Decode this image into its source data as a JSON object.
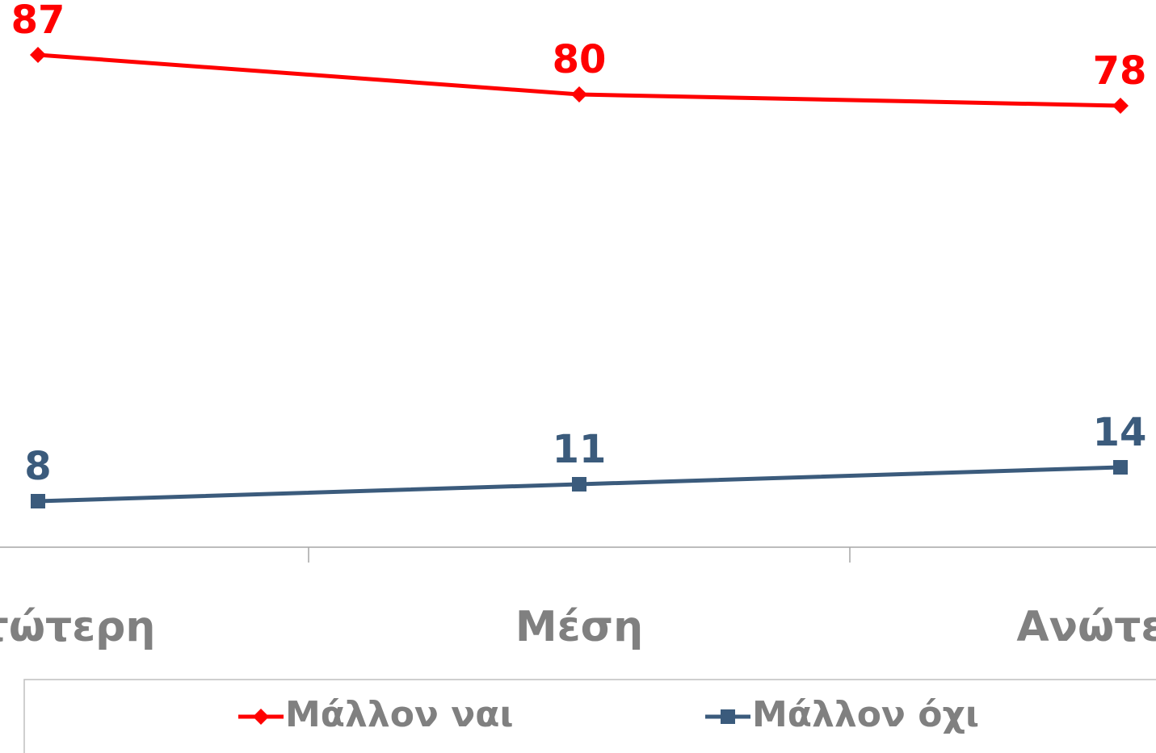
{
  "chart_data": {
    "type": "line",
    "categories": [
      "Κατώτερη",
      "Μέση",
      "Ανώτερη"
    ],
    "series": [
      {
        "name": "Μάλλον ναι",
        "color": "#ff0000",
        "marker": "diamond",
        "values": [
          87,
          80,
          78
        ]
      },
      {
        "name": "Μάλλον όχι",
        "color": "#3b5b7c",
        "marker": "square",
        "values": [
          8,
          11,
          14
        ]
      }
    ],
    "ylim": [
      0,
      100
    ],
    "legend": "bottom"
  }
}
